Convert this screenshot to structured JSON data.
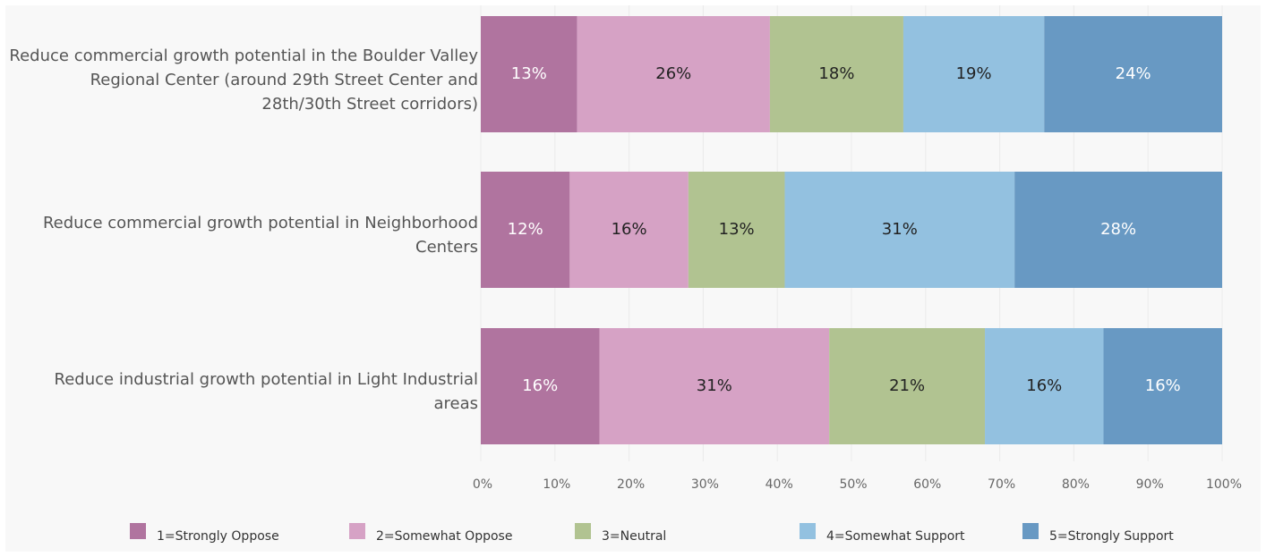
{
  "chart_data": {
    "type": "stacked_barh",
    "categories": [
      "Reduce commercial growth potential in the Boulder Valley Regional Center (around 29th Street Center and 28th/30th Street corridors)",
      "Reduce commercial growth potential in Neighborhood Centers",
      "Reduce industrial growth potential in Light Industrial areas"
    ],
    "series": [
      {
        "name": "1=Strongly Oppose",
        "color": "#b0749f",
        "label_color": "#ffffff",
        "values": [
          13,
          12,
          16
        ],
        "value_labels": [
          "13%",
          "12%",
          "16%"
        ]
      },
      {
        "name": "2=Somewhat Oppose",
        "color": "#d6a2c5",
        "label_color": "#222222",
        "values": [
          26,
          16,
          31
        ],
        "value_labels": [
          "26%",
          "16%",
          "31%"
        ]
      },
      {
        "name": "3=Neutral",
        "color": "#b1c391",
        "label_color": "#222222",
        "values": [
          18,
          13,
          21
        ],
        "value_labels": [
          "18%",
          "13%",
          "21%"
        ]
      },
      {
        "name": "4=Somewhat Support",
        "color": "#93c1e0",
        "label_color": "#222222",
        "values": [
          19,
          31,
          16
        ],
        "value_labels": [
          "19%",
          "31%",
          "16%"
        ]
      },
      {
        "name": "5=Strongly Support",
        "color": "#6899c3",
        "label_color": "#ffffff",
        "values": [
          24,
          28,
          16
        ],
        "value_labels": [
          "24%",
          "28%",
          "16%"
        ]
      }
    ],
    "xlim": [
      0,
      100
    ],
    "xticks": [
      {
        "value": 0,
        "label": "0%"
      },
      {
        "value": 10,
        "label": "10%"
      },
      {
        "value": 20,
        "label": "20%"
      },
      {
        "value": 30,
        "label": "30%"
      },
      {
        "value": 40,
        "label": "40%"
      },
      {
        "value": 50,
        "label": "50%"
      },
      {
        "value": 60,
        "label": "60%"
      },
      {
        "value": 70,
        "label": "70%"
      },
      {
        "value": 80,
        "label": "80%"
      },
      {
        "value": 90,
        "label": "90%"
      },
      {
        "value": 100,
        "label": "100%"
      }
    ],
    "grid": true,
    "legend": "bottom"
  }
}
